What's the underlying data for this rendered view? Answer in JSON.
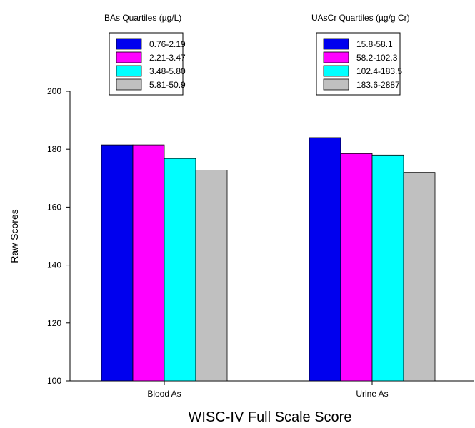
{
  "chart_data": {
    "type": "bar",
    "xlabel": "WISC-IV Full Scale Score",
    "ylabel": "Raw Scores",
    "ylim": [
      100,
      200
    ],
    "yticks": [
      100,
      120,
      140,
      160,
      180,
      200
    ],
    "grid": false,
    "categories": [
      "Blood As",
      "Urine As"
    ],
    "legends": [
      {
        "title": "BAs Quartiles (µg/L)",
        "placement": "top-left",
        "entries": [
          {
            "label": "0.76-2.19",
            "color": "#0000ee"
          },
          {
            "label": "2.21-3.47",
            "color": "#ff00ff"
          },
          {
            "label": "3.48-5.80",
            "color": "#00ffff"
          },
          {
            "label": "5.81-50.9",
            "color": "#c0c0c0"
          }
        ]
      },
      {
        "title": "UAsCr Quartiles (µg/g Cr)",
        "placement": "top-right",
        "entries": [
          {
            "label": "15.8-58.1",
            "color": "#0000ee"
          },
          {
            "label": "58.2-102.3",
            "color": "#ff00ff"
          },
          {
            "label": "102.4-183.5",
            "color": "#00ffff"
          },
          {
            "label": "183.6-2887",
            "color": "#c0c0c0"
          }
        ]
      }
    ],
    "series": [
      {
        "values": [
          181.5,
          184
        ],
        "color": "#0000ee"
      },
      {
        "values": [
          181.5,
          178.5
        ],
        "color": "#ff00ff"
      },
      {
        "values": [
          176.8,
          178
        ],
        "color": "#00ffff"
      },
      {
        "values": [
          172.8,
          172
        ],
        "color": "#c0c0c0"
      }
    ]
  }
}
